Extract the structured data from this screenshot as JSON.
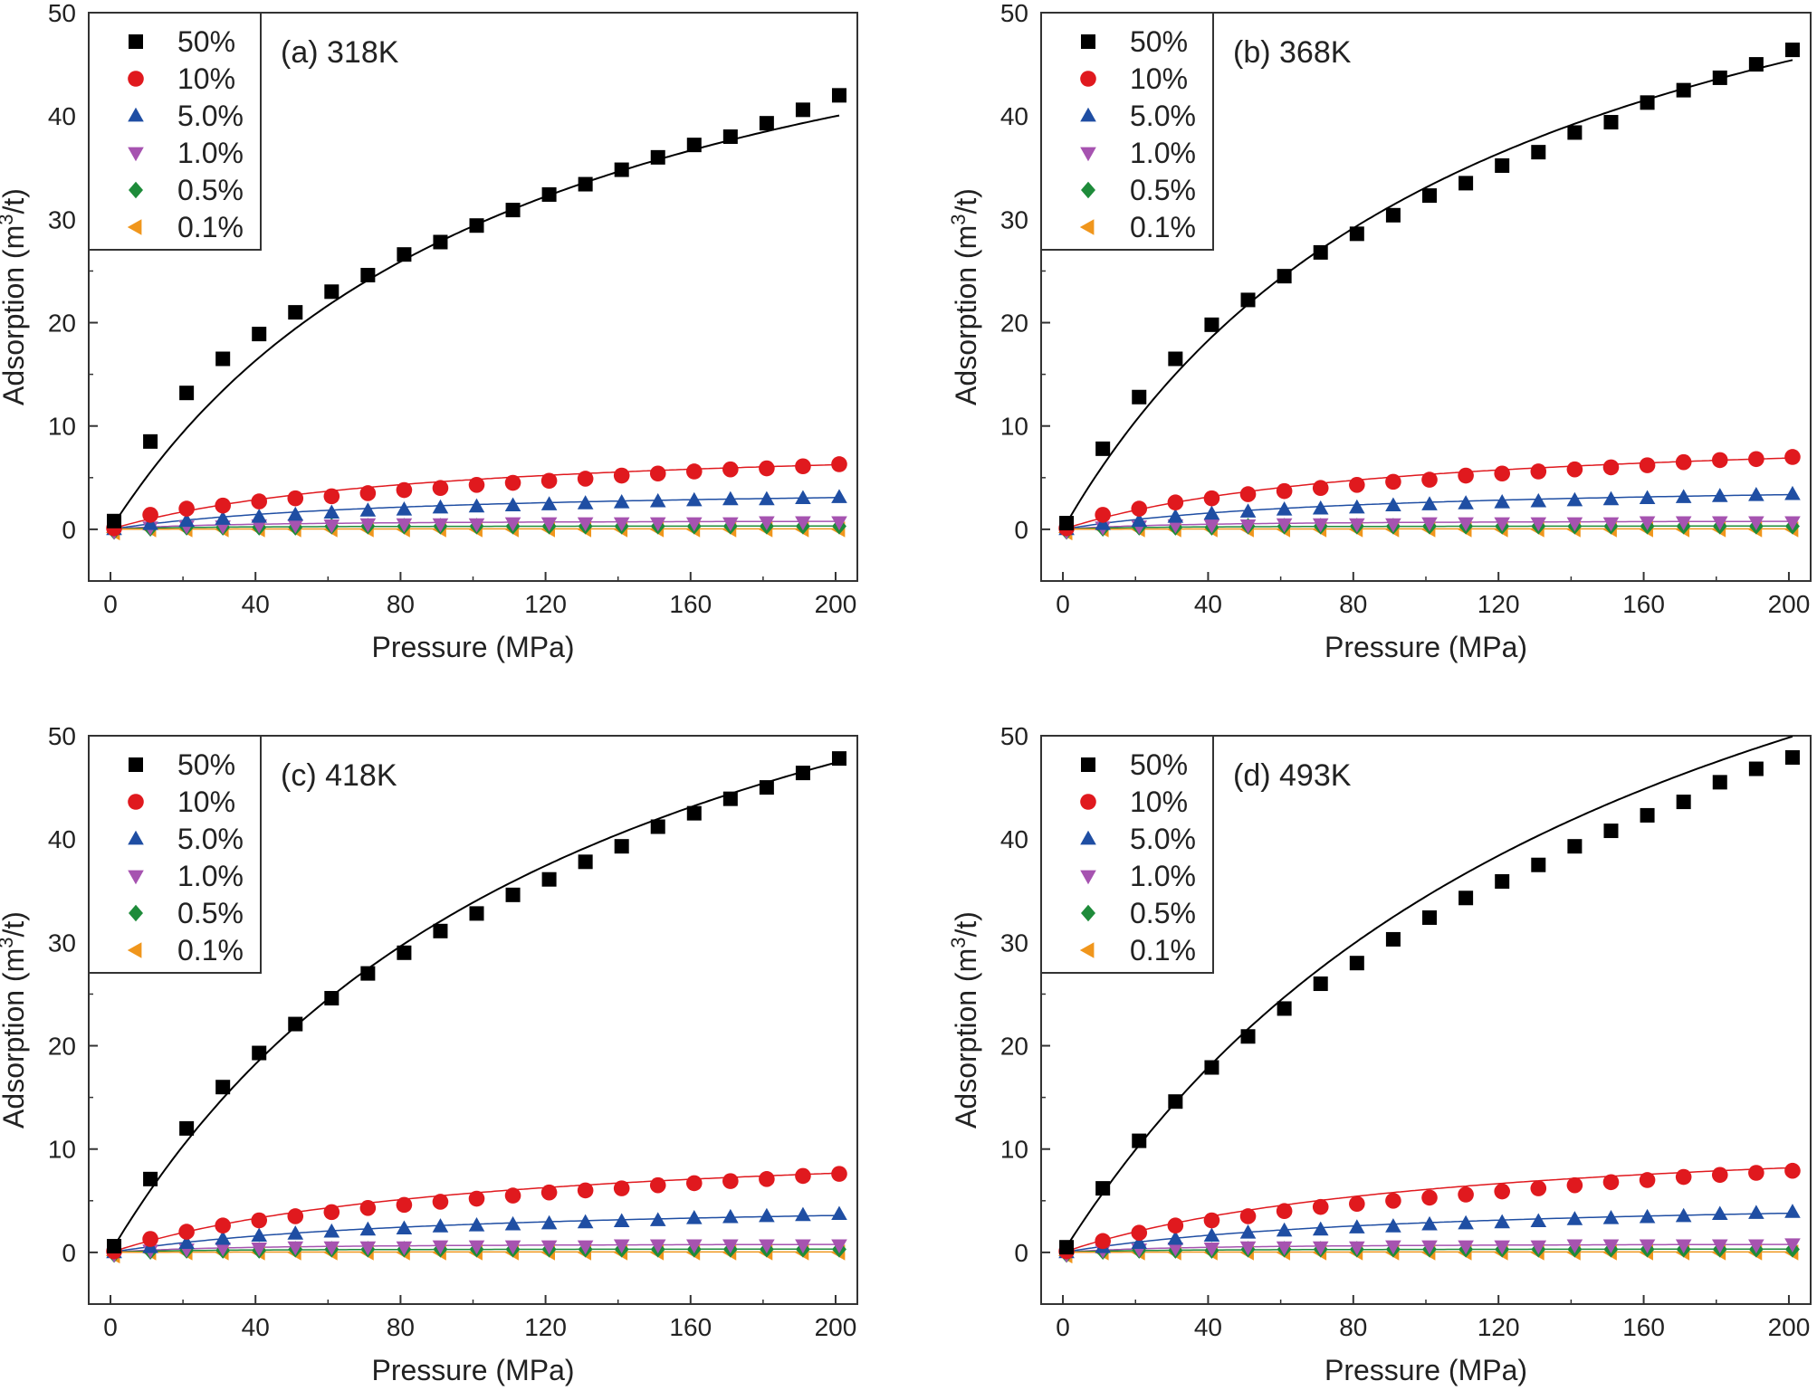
{
  "figure": {
    "x_axis_title": "Pressure (MPa)",
    "y_axis_title_main": "Adsorption (m",
    "y_axis_title_sup": "3",
    "y_axis_title_end": "/t)",
    "x_ticks": [
      "0",
      "40",
      "80",
      "120",
      "160",
      "200"
    ],
    "y_ticks": [
      "0",
      "10",
      "20",
      "30",
      "40",
      "50"
    ]
  },
  "legend": [
    {
      "label": "50%",
      "marker": "square",
      "color": "#000000"
    },
    {
      "label": "10%",
      "marker": "circle",
      "color": "#e0191e"
    },
    {
      "label": "5.0%",
      "marker": "triangle-up",
      "color": "#1f4ea3"
    },
    {
      "label": "1.0%",
      "marker": "triangle-down",
      "color": "#a653b0"
    },
    {
      "label": "0.5%",
      "marker": "diamond",
      "color": "#1e8b3a"
    },
    {
      "label": "0.1%",
      "marker": "triangle-left",
      "color": "#f0961c"
    }
  ],
  "chart_data": [
    {
      "type": "scatter",
      "title": "(a) 318K",
      "xlabel": "Pressure (MPa)",
      "ylabel": "Adsorption (m3/t)",
      "xlim": [
        -6,
        206
      ],
      "ylim": [
        -5,
        50
      ],
      "x": [
        1,
        11,
        21,
        31,
        41,
        51,
        61,
        71,
        81,
        91,
        101,
        111,
        121,
        131,
        141,
        151,
        161,
        171,
        181,
        191,
        201
      ],
      "series": [
        {
          "name": "50%",
          "values": [
            0.8,
            8.5,
            13.2,
            16.5,
            18.9,
            21.0,
            23.0,
            24.6,
            26.6,
            27.8,
            29.4,
            30.9,
            32.4,
            33.4,
            34.8,
            36.0,
            37.2,
            38.0,
            39.3,
            40.6,
            42.0
          ]
        },
        {
          "name": "10%",
          "values": [
            0.1,
            1.4,
            2.0,
            2.3,
            2.7,
            3.0,
            3.2,
            3.5,
            3.8,
            4.0,
            4.3,
            4.5,
            4.7,
            4.9,
            5.2,
            5.4,
            5.6,
            5.8,
            5.9,
            6.1,
            6.3
          ]
        },
        {
          "name": "5.0%",
          "values": [
            0.0,
            0.5,
            0.8,
            1.0,
            1.2,
            1.4,
            1.6,
            1.8,
            1.9,
            2.1,
            2.2,
            2.3,
            2.4,
            2.5,
            2.6,
            2.7,
            2.8,
            2.9,
            2.9,
            3.0,
            3.1
          ]
        },
        {
          "name": "1.0%",
          "values": [
            -0.2,
            0.2,
            0.3,
            0.3,
            0.4,
            0.4,
            0.4,
            0.5,
            0.5,
            0.5,
            0.5,
            0.6,
            0.6,
            0.6,
            0.6,
            0.6,
            0.6,
            0.6,
            0.7,
            0.7,
            0.7
          ]
        },
        {
          "name": "0.5%",
          "values": [
            -0.2,
            0.1,
            0.2,
            0.2,
            0.2,
            0.2,
            0.3,
            0.3,
            0.3,
            0.3,
            0.3,
            0.3,
            0.3,
            0.3,
            0.3,
            0.3,
            0.3,
            0.3,
            0.3,
            0.3,
            0.3
          ]
        },
        {
          "name": "0.1%",
          "values": [
            -0.3,
            0.0,
            0.0,
            0.0,
            0.0,
            0.0,
            0.0,
            0.0,
            0.0,
            0.0,
            0.0,
            0.0,
            0.0,
            0.0,
            0.0,
            0.0,
            0.0,
            0.0,
            0.0,
            0.0,
            0.0
          ]
        }
      ],
      "fit_lines": [
        {
          "name": "50%",
          "a": 62.7,
          "b": 0.0088
        },
        {
          "name": "10%",
          "a": 8.9,
          "b": 0.0118
        },
        {
          "name": "5.0%",
          "a": 4.3,
          "b": 0.0125
        },
        {
          "name": "1.0%",
          "a": 0.9,
          "b": 0.03
        },
        {
          "name": "0.5%",
          "a": 0.35,
          "b": 0.05
        },
        {
          "name": "0.1%",
          "a": 0.05,
          "b": 0.05
        }
      ]
    },
    {
      "type": "scatter",
      "title": "(b) 368K",
      "xlabel": "Pressure (MPa)",
      "ylabel": "Adsorption (m3/t)",
      "xlim": [
        -6,
        206
      ],
      "ylim": [
        -5,
        50
      ],
      "x": [
        1,
        11,
        21,
        31,
        41,
        51,
        61,
        71,
        81,
        91,
        101,
        111,
        121,
        131,
        141,
        151,
        161,
        171,
        181,
        191,
        201
      ],
      "series": [
        {
          "name": "50%",
          "values": [
            0.6,
            7.8,
            12.8,
            16.5,
            19.8,
            22.2,
            24.5,
            26.8,
            28.6,
            30.4,
            32.3,
            33.5,
            35.2,
            36.5,
            38.4,
            39.4,
            41.3,
            42.5,
            43.7,
            45.0,
            46.4
          ]
        },
        {
          "name": "10%",
          "values": [
            0.1,
            1.4,
            2.0,
            2.6,
            3.0,
            3.4,
            3.7,
            4.0,
            4.3,
            4.6,
            4.8,
            5.2,
            5.4,
            5.6,
            5.8,
            6.0,
            6.2,
            6.5,
            6.7,
            6.8,
            7.0
          ]
        },
        {
          "name": "5.0%",
          "values": [
            0.0,
            0.5,
            0.8,
            1.2,
            1.5,
            1.7,
            1.9,
            2.0,
            2.1,
            2.3,
            2.4,
            2.5,
            2.6,
            2.7,
            2.8,
            2.9,
            3.0,
            3.1,
            3.2,
            3.3,
            3.4
          ]
        },
        {
          "name": "1.0%",
          "values": [
            -0.2,
            0.2,
            0.3,
            0.4,
            0.4,
            0.4,
            0.5,
            0.5,
            0.5,
            0.5,
            0.6,
            0.6,
            0.6,
            0.6,
            0.6,
            0.6,
            0.7,
            0.7,
            0.7,
            0.7,
            0.7
          ]
        },
        {
          "name": "0.5%",
          "values": [
            -0.2,
            0.1,
            0.2,
            0.2,
            0.2,
            0.3,
            0.3,
            0.3,
            0.3,
            0.3,
            0.3,
            0.3,
            0.3,
            0.3,
            0.3,
            0.3,
            0.3,
            0.3,
            0.3,
            0.3,
            0.3
          ]
        },
        {
          "name": "0.1%",
          "values": [
            -0.3,
            0.0,
            0.0,
            0.0,
            0.0,
            0.0,
            0.0,
            0.0,
            0.0,
            0.0,
            0.0,
            0.0,
            0.0,
            0.0,
            0.0,
            0.0,
            0.0,
            0.0,
            0.0,
            0.0,
            0.0
          ]
        }
      ],
      "fit_lines": [
        {
          "name": "50%",
          "a": 72.0,
          "b": 0.0085
        },
        {
          "name": "10%",
          "a": 9.9,
          "b": 0.0115
        },
        {
          "name": "5.0%",
          "a": 4.7,
          "b": 0.0125
        },
        {
          "name": "1.0%",
          "a": 0.9,
          "b": 0.03
        },
        {
          "name": "0.5%",
          "a": 0.35,
          "b": 0.05
        },
        {
          "name": "0.1%",
          "a": 0.05,
          "b": 0.05
        }
      ]
    },
    {
      "type": "scatter",
      "title": "(c) 418K",
      "xlabel": "Pressure (MPa)",
      "ylabel": "Adsorption (m3/t)",
      "xlim": [
        -6,
        206
      ],
      "ylim": [
        -5,
        50
      ],
      "x": [
        1,
        11,
        21,
        31,
        41,
        51,
        61,
        71,
        81,
        91,
        101,
        111,
        121,
        131,
        141,
        151,
        161,
        171,
        181,
        191,
        201
      ],
      "series": [
        {
          "name": "50%",
          "values": [
            0.6,
            7.1,
            12.0,
            16.0,
            19.3,
            22.1,
            24.6,
            27.0,
            29.0,
            31.1,
            32.8,
            34.6,
            36.1,
            37.8,
            39.3,
            41.2,
            42.5,
            43.9,
            45.0,
            46.4,
            47.8
          ]
        },
        {
          "name": "10%",
          "values": [
            0.1,
            1.3,
            2.0,
            2.6,
            3.1,
            3.5,
            3.9,
            4.3,
            4.6,
            4.9,
            5.2,
            5.5,
            5.8,
            6.0,
            6.2,
            6.5,
            6.7,
            6.9,
            7.1,
            7.4,
            7.6
          ]
        },
        {
          "name": "5.0%",
          "values": [
            0.0,
            0.5,
            0.9,
            1.3,
            1.6,
            1.8,
            2.0,
            2.2,
            2.3,
            2.5,
            2.6,
            2.7,
            2.8,
            2.9,
            3.0,
            3.1,
            3.3,
            3.4,
            3.5,
            3.6,
            3.7
          ]
        },
        {
          "name": "1.0%",
          "values": [
            -0.2,
            0.2,
            0.3,
            0.4,
            0.4,
            0.5,
            0.5,
            0.5,
            0.5,
            0.6,
            0.6,
            0.6,
            0.6,
            0.6,
            0.7,
            0.7,
            0.7,
            0.7,
            0.7,
            0.7,
            0.7
          ]
        },
        {
          "name": "0.5%",
          "values": [
            -0.2,
            0.1,
            0.2,
            0.2,
            0.2,
            0.3,
            0.3,
            0.3,
            0.3,
            0.3,
            0.3,
            0.3,
            0.3,
            0.3,
            0.3,
            0.3,
            0.3,
            0.3,
            0.3,
            0.3,
            0.3
          ]
        },
        {
          "name": "0.1%",
          "values": [
            -0.3,
            0.0,
            0.0,
            0.0,
            0.0,
            0.0,
            0.0,
            0.0,
            0.0,
            0.0,
            0.0,
            0.0,
            0.0,
            0.0,
            0.0,
            0.0,
            0.0,
            0.0,
            0.0,
            0.0,
            0.0
          ]
        }
      ],
      "fit_lines": [
        {
          "name": "50%",
          "a": 79.0,
          "b": 0.0075
        },
        {
          "name": "10%",
          "a": 11.5,
          "b": 0.01
        },
        {
          "name": "5.0%",
          "a": 5.2,
          "b": 0.011
        },
        {
          "name": "1.0%",
          "a": 0.9,
          "b": 0.03
        },
        {
          "name": "0.5%",
          "a": 0.35,
          "b": 0.05
        },
        {
          "name": "0.1%",
          "a": 0.05,
          "b": 0.05
        }
      ]
    },
    {
      "type": "scatter",
      "title": "(d) 493K",
      "xlabel": "Pressure (MPa)",
      "ylabel": "Adsorption (m3/t)",
      "xlim": [
        -6,
        206
      ],
      "ylim": [
        -5,
        50
      ],
      "x": [
        1,
        11,
        21,
        31,
        41,
        51,
        61,
        71,
        81,
        91,
        101,
        111,
        121,
        131,
        141,
        151,
        161,
        171,
        181,
        191,
        201
      ],
      "series": [
        {
          "name": "50%",
          "values": [
            0.5,
            6.2,
            10.8,
            14.6,
            17.9,
            20.9,
            23.6,
            26.0,
            28.0,
            30.3,
            32.4,
            34.3,
            35.9,
            37.5,
            39.3,
            40.8,
            42.3,
            43.6,
            45.5,
            46.8,
            47.9
          ]
        },
        {
          "name": "10%",
          "values": [
            0.1,
            1.1,
            1.9,
            2.6,
            3.1,
            3.5,
            4.0,
            4.4,
            4.7,
            5.0,
            5.3,
            5.6,
            5.9,
            6.2,
            6.5,
            6.8,
            7.0,
            7.3,
            7.5,
            7.7,
            7.9
          ]
        },
        {
          "name": "5.0%",
          "values": [
            0.0,
            0.5,
            0.9,
            1.3,
            1.6,
            1.9,
            2.1,
            2.2,
            2.4,
            2.5,
            2.7,
            2.8,
            2.9,
            3.0,
            3.2,
            3.3,
            3.4,
            3.5,
            3.7,
            3.8,
            3.9
          ]
        },
        {
          "name": "1.0%",
          "values": [
            -0.2,
            0.2,
            0.3,
            0.4,
            0.4,
            0.5,
            0.5,
            0.5,
            0.5,
            0.6,
            0.6,
            0.6,
            0.6,
            0.6,
            0.7,
            0.7,
            0.7,
            0.7,
            0.7,
            0.7,
            0.8
          ]
        },
        {
          "name": "0.5%",
          "values": [
            -0.2,
            0.1,
            0.2,
            0.2,
            0.2,
            0.3,
            0.3,
            0.3,
            0.3,
            0.3,
            0.3,
            0.3,
            0.3,
            0.3,
            0.3,
            0.3,
            0.3,
            0.3,
            0.3,
            0.3,
            0.3
          ]
        },
        {
          "name": "0.1%",
          "values": [
            -0.3,
            0.0,
            0.0,
            0.0,
            0.0,
            0.0,
            0.0,
            0.0,
            0.0,
            0.0,
            0.0,
            0.0,
            0.0,
            0.0,
            0.0,
            0.0,
            0.0,
            0.0,
            0.0,
            0.0,
            0.0
          ]
        }
      ],
      "fit_lines": [
        {
          "name": "50%",
          "a": 90.0,
          "b": 0.0062
        },
        {
          "name": "10%",
          "a": 12.5,
          "b": 0.0095
        },
        {
          "name": "5.0%",
          "a": 5.6,
          "b": 0.0105
        },
        {
          "name": "1.0%",
          "a": 0.9,
          "b": 0.03
        },
        {
          "name": "0.5%",
          "a": 0.35,
          "b": 0.05
        },
        {
          "name": "0.1%",
          "a": 0.05,
          "b": 0.05
        }
      ]
    }
  ]
}
